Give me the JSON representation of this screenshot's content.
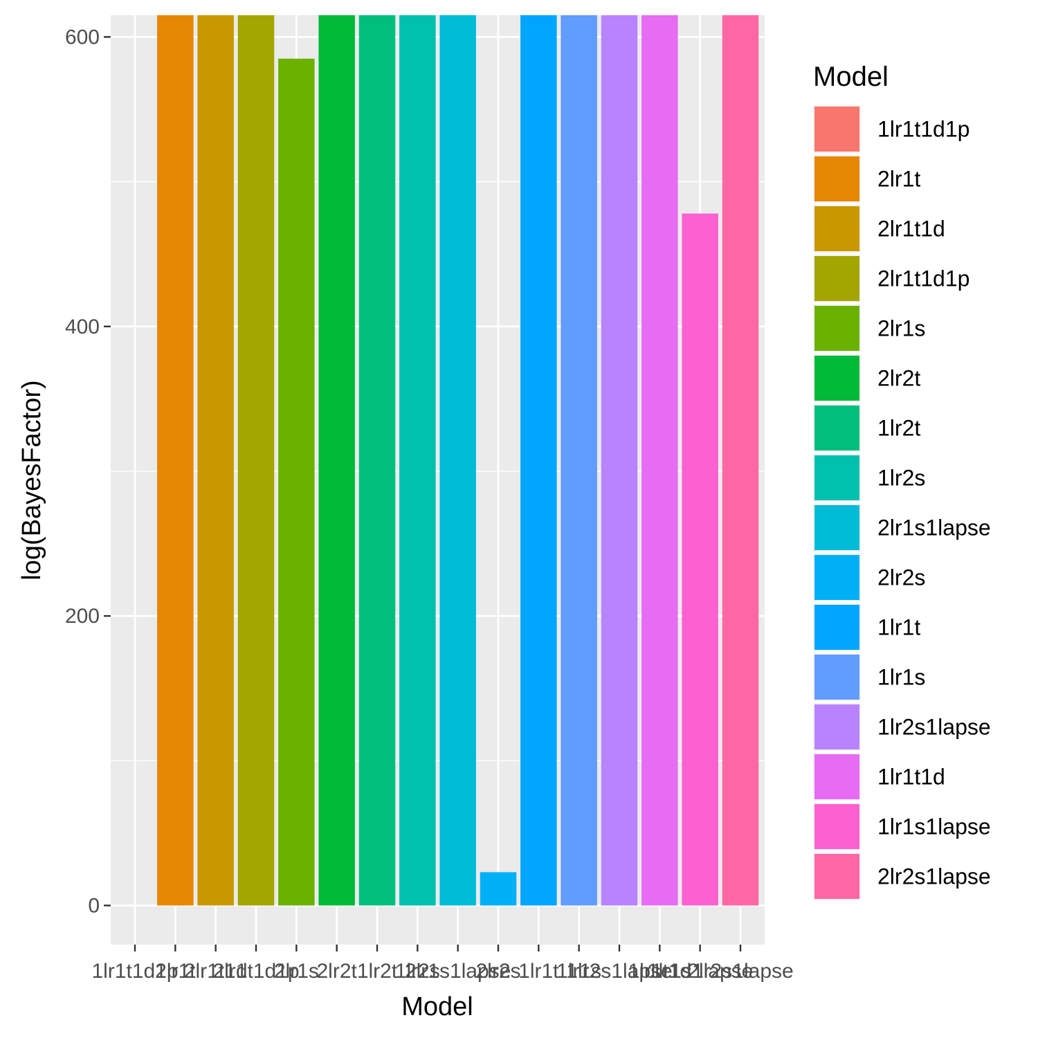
{
  "chart_data": {
    "type": "bar",
    "xlabel": "Model",
    "ylabel": "log(BayesFactor)",
    "categories": [
      "1lr1t1d1p",
      "2lr1t",
      "2lr1t1d",
      "2lr1t1d1p",
      "2lr1s",
      "2lr2t",
      "1lr2t",
      "1lr2s",
      "2lr1s1lapse",
      "2lr2s",
      "1lr1t",
      "1lr1s",
      "1lr2s1lapse",
      "1lr1t1d",
      "1lr1s1lapse",
      "2lr2s1lapse"
    ],
    "values": [
      0,
      615,
      615,
      615,
      585,
      615,
      615,
      615,
      615,
      23,
      615,
      615,
      615,
      615,
      478,
      615
    ],
    "colors": [
      "#F8766D",
      "#E58700",
      "#C99800",
      "#A3A500",
      "#6BB100",
      "#00BA38",
      "#00BF7D",
      "#00C0AF",
      "#00BCD8",
      "#00B0F6",
      "#00A5FF",
      "#619CFF",
      "#B983FF",
      "#E76BF3",
      "#FD61D1",
      "#FF67A4"
    ],
    "ylim": [
      -27,
      615
    ],
    "yticks": [
      0,
      200,
      400,
      600
    ],
    "yminor": [
      100,
      300,
      500
    ],
    "grid": true,
    "legend": {
      "title": "Model",
      "position": "right"
    }
  }
}
